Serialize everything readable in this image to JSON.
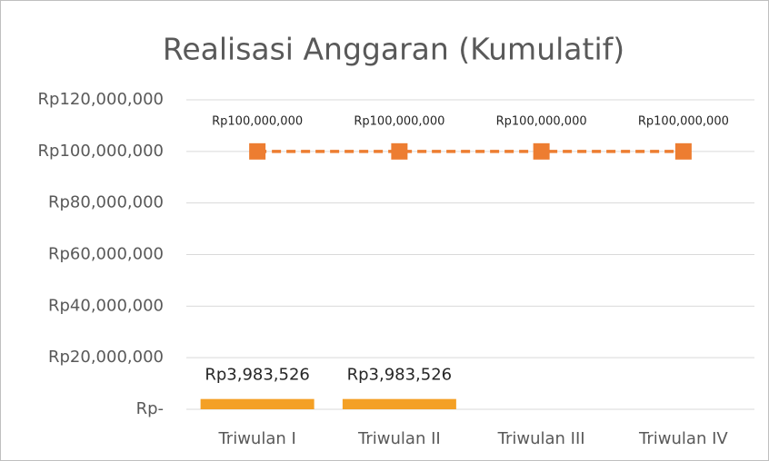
{
  "chart_data": {
    "type": "bar_line",
    "title": "Realisasi Anggaran (Kumulatif)",
    "categories": [
      "Triwulan I",
      "Triwulan II",
      "Triwulan III",
      "Triwulan IV"
    ],
    "series": [
      {
        "type": "bar",
        "color": "#f4a025",
        "values": [
          3983526,
          3983526,
          null,
          null
        ],
        "value_labels": [
          "Rp3,983,526",
          "Rp3,983,526",
          null,
          null
        ]
      },
      {
        "type": "line",
        "color": "#ed7d31",
        "dashed": true,
        "marker": "square",
        "values": [
          100000000,
          100000000,
          100000000,
          100000000
        ],
        "value_labels": [
          "Rp100,000,000",
          "Rp100,000,000",
          "Rp100,000,000",
          "Rp100,000,000"
        ]
      }
    ],
    "ylim": [
      0,
      120000000
    ],
    "yticks": [
      {
        "value": 0,
        "label": "Rp-"
      },
      {
        "value": 20000000,
        "label": "Rp20,000,000"
      },
      {
        "value": 40000000,
        "label": "Rp40,000,000"
      },
      {
        "value": 60000000,
        "label": "Rp60,000,000"
      },
      {
        "value": 80000000,
        "label": "Rp80,000,000"
      },
      {
        "value": 100000000,
        "label": "Rp100,000,000"
      },
      {
        "value": 120000000,
        "label": "Rp120,000,000"
      }
    ],
    "grid": true
  }
}
